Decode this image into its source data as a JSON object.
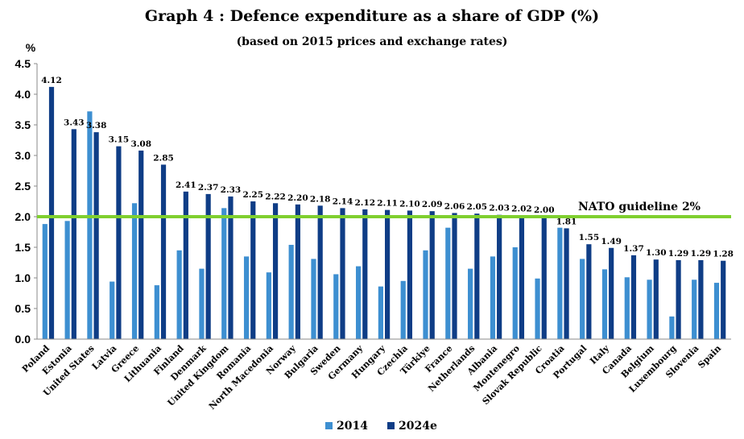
{
  "chart_data": {
    "type": "bar",
    "title": "Graph 4 : Defence expenditure as a share of GDP (%)",
    "subtitle": "(based on 2015 prices and exchange rates)",
    "ylabel": "%",
    "ylim": [
      0,
      4.5
    ],
    "yticks": [
      "0.0",
      "0.5",
      "1.0",
      "1.5",
      "2.0",
      "2.5",
      "3.0",
      "3.5",
      "4.0",
      "4.5"
    ],
    "categories": [
      "Poland",
      "Estonia",
      "United States",
      "Latvia",
      "Greece",
      "Lithuania",
      "Finland",
      "Denmark",
      "United Kingdom",
      "Romania",
      "North Macedonia",
      "Norway",
      "Bulgaria",
      "Sweden",
      "Germany",
      "Hungary",
      "Czechia",
      "Türkiye",
      "France",
      "Netherlands",
      "Albania",
      "Montenegro",
      "Slovak Republic",
      "Croatia",
      "Portugal",
      "Italy",
      "Canada",
      "Belgium",
      "Luxembourg",
      "Slovenia",
      "Spain"
    ],
    "series": [
      {
        "name": "2014",
        "color": "#3d8fd1",
        "values": [
          1.88,
          1.93,
          3.72,
          0.94,
          2.22,
          0.88,
          1.45,
          1.15,
          2.14,
          1.35,
          1.09,
          1.54,
          1.31,
          1.06,
          1.19,
          0.86,
          0.95,
          1.45,
          1.82,
          1.15,
          1.35,
          1.5,
          0.99,
          1.82,
          1.31,
          1.14,
          1.01,
          0.97,
          0.37,
          0.97,
          0.92
        ]
      },
      {
        "name": "2024e",
        "color": "#0f3d86",
        "values": [
          4.12,
          3.43,
          3.38,
          3.15,
          3.08,
          2.85,
          2.41,
          2.37,
          2.33,
          2.25,
          2.22,
          2.2,
          2.18,
          2.14,
          2.12,
          2.11,
          2.1,
          2.09,
          2.06,
          2.05,
          2.03,
          2.02,
          2.0,
          1.81,
          1.55,
          1.49,
          1.37,
          1.3,
          1.29,
          1.29,
          1.28
        ],
        "labels": [
          "4.12",
          "3.43",
          "3.38",
          "3.15",
          "3.08",
          "2.85",
          "2.41",
          "2.37",
          "2.33",
          "2.25",
          "2.22",
          "2.20",
          "2.18",
          "2.14",
          "2.12",
          "2.11",
          "2.10",
          "2.09",
          "2.06",
          "2.05",
          "2.03",
          "2.02",
          "2.00",
          "1.81",
          "1.55",
          "1.49",
          "1.37",
          "1.30",
          "1.29",
          "1.29",
          "1.28"
        ]
      }
    ],
    "reference_line": {
      "value": 2.0,
      "label": "NATO guideline 2%",
      "color": "#7fcf2f"
    },
    "legend": {
      "position": "bottom-center"
    },
    "grid": false
  }
}
